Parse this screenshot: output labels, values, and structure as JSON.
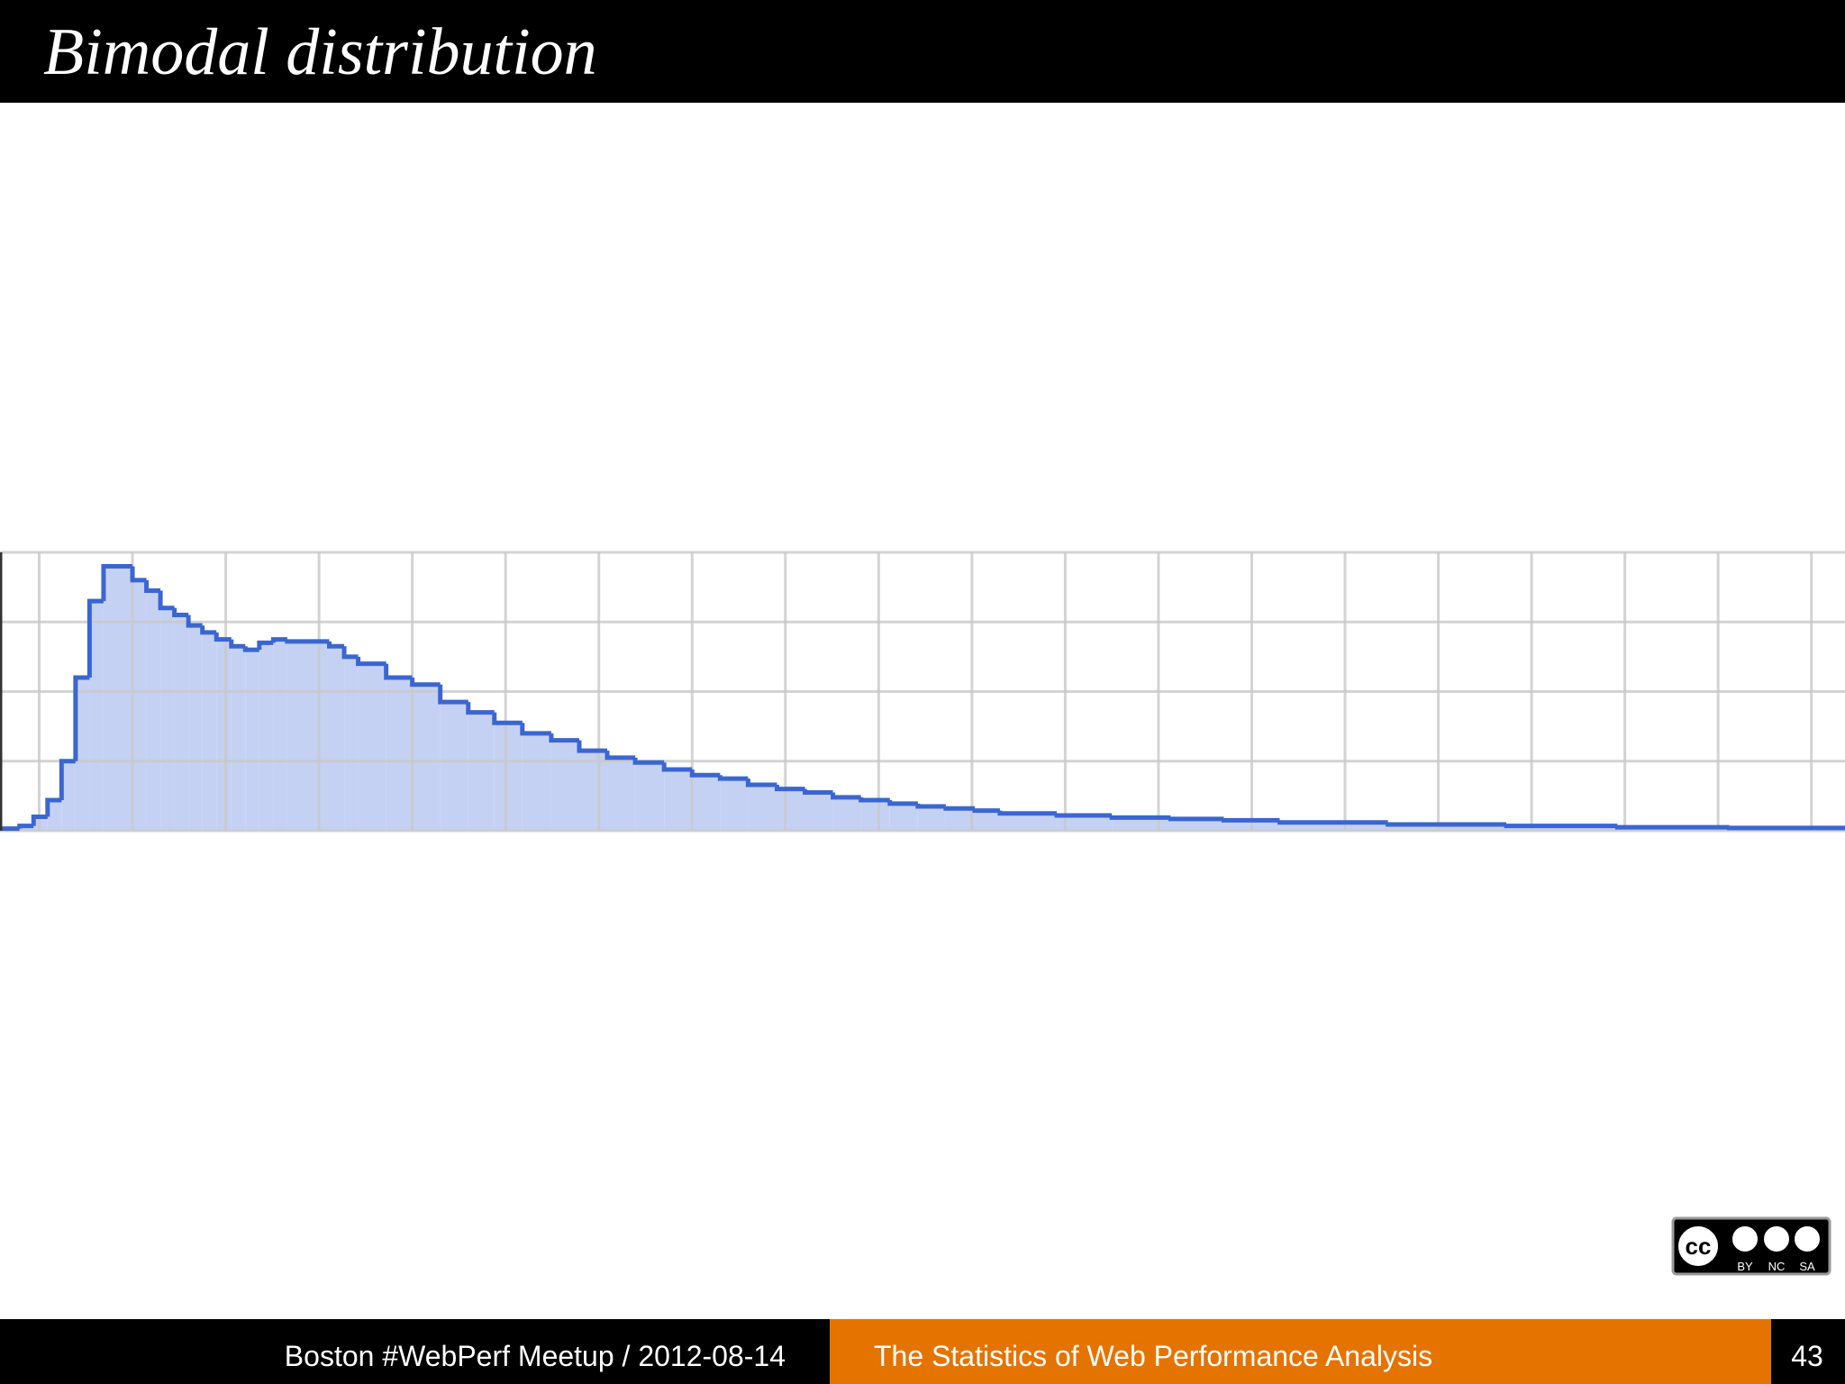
{
  "slide": {
    "title": "Bimodal distribution",
    "footer": {
      "left": "Boston #WebPerf Meetup / 2012-08-14",
      "middle": "The Statistics of Web Performance Analysis",
      "page": "43"
    },
    "badge": {
      "logo": "cc",
      "terms": [
        "BY",
        "NC",
        "SA"
      ]
    }
  },
  "chart_data": {
    "type": "histogram",
    "color": "#3a66d1",
    "fill": "#c5d1f2",
    "bins": [
      -0.42,
      -0.21,
      -0.06,
      0.09,
      0.24,
      0.39,
      0.54,
      0.69,
      1.0,
      1.15,
      1.3,
      1.45,
      1.6,
      1.75,
      1.9,
      2.06,
      2.21,
      2.36,
      2.51,
      2.66,
      3.11,
      3.27,
      3.42,
      3.72,
      4.0,
      4.3,
      4.6,
      4.88,
      5.18,
      5.49,
      5.79,
      6.09,
      6.39,
      6.7,
      7.0,
      7.3,
      7.6,
      7.91,
      8.21,
      8.51,
      8.81,
      9.12,
      9.42,
      9.72,
      10.03,
      10.3,
      10.91,
      11.5,
      12.13,
      12.7,
      13.3,
      14.46,
      15.73,
      16.92,
      18.12,
      19.36
    ],
    "values": [
      0.03,
      0.07,
      0.2,
      0.44,
      1.0,
      2.2,
      3.3,
      3.8,
      3.6,
      3.45,
      3.2,
      3.1,
      2.95,
      2.85,
      2.75,
      2.65,
      2.6,
      2.7,
      2.75,
      2.72,
      2.65,
      2.5,
      2.4,
      2.2,
      2.1,
      1.85,
      1.7,
      1.55,
      1.4,
      1.3,
      1.15,
      1.05,
      0.98,
      0.88,
      0.8,
      0.75,
      0.66,
      0.6,
      0.55,
      0.48,
      0.44,
      0.39,
      0.35,
      0.32,
      0.29,
      0.25,
      0.22,
      0.19,
      0.17,
      0.15,
      0.12,
      0.09,
      0.07,
      0.05,
      0.04
    ],
    "xlim": [
      -0.42,
      19.36
    ],
    "xticks": [
      0,
      1,
      2,
      3,
      4,
      5,
      6,
      7,
      8,
      9,
      10,
      11,
      12,
      13,
      14,
      15,
      16,
      17,
      18,
      19
    ],
    "ylim": [
      0,
      4
    ],
    "yticks": [
      0,
      1,
      2,
      3,
      4
    ],
    "grid": true
  }
}
